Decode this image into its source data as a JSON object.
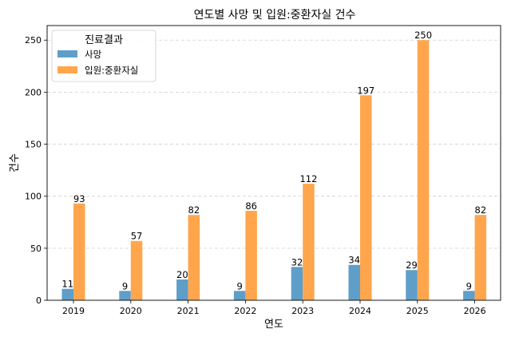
{
  "chart_data": {
    "type": "bar",
    "title": "연도별 사망 및 입원:중환자실 건수",
    "xlabel": "연도",
    "ylabel": "건수",
    "categories": [
      "2019",
      "2020",
      "2021",
      "2022",
      "2023",
      "2024",
      "2025",
      "2026"
    ],
    "series": [
      {
        "name": "사망",
        "values": [
          11,
          9,
          20,
          9,
          32,
          34,
          29,
          9
        ]
      },
      {
        "name": "입원:중환자실",
        "values": [
          93,
          57,
          82,
          86,
          112,
          197,
          250,
          82
        ]
      }
    ],
    "ylim": [
      0,
      264
    ],
    "yticks": [
      0,
      50,
      100,
      150,
      200,
      250
    ],
    "grid": "y-dashed",
    "legend": {
      "title": "진료결과",
      "placement": "top-left"
    },
    "data_labels": true
  },
  "colors": {
    "series": [
      "#5f9ec9",
      "#ffa64d"
    ],
    "grid": "#d0d0d0",
    "axis": "#000000"
  }
}
